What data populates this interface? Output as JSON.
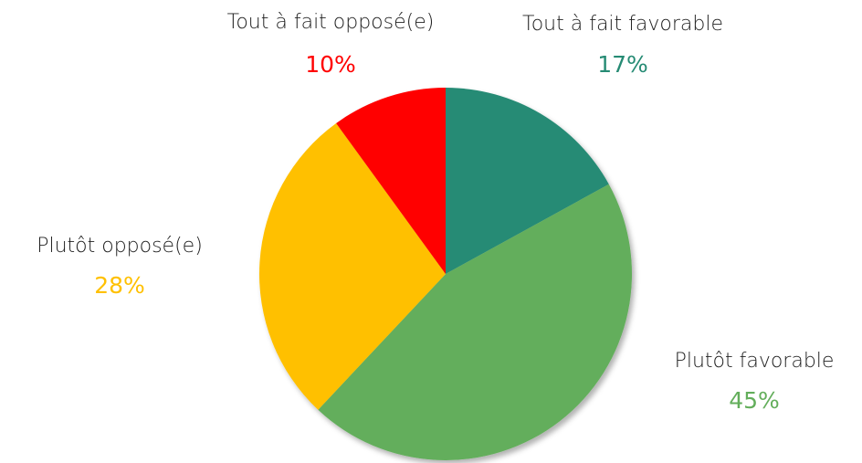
{
  "chart_data": {
    "type": "pie",
    "categories": [
      "Tout à fait favorable",
      "Plutôt favorable",
      "Plutôt opposé(e)",
      "Tout à fait opposé(e)"
    ],
    "values": [
      17,
      45,
      28,
      10
    ],
    "value_labels": [
      "17%",
      "45%",
      "28%",
      "10%"
    ],
    "colors": [
      "#268b74",
      "#63ae5b",
      "#ffc000",
      "#ff0000"
    ]
  }
}
